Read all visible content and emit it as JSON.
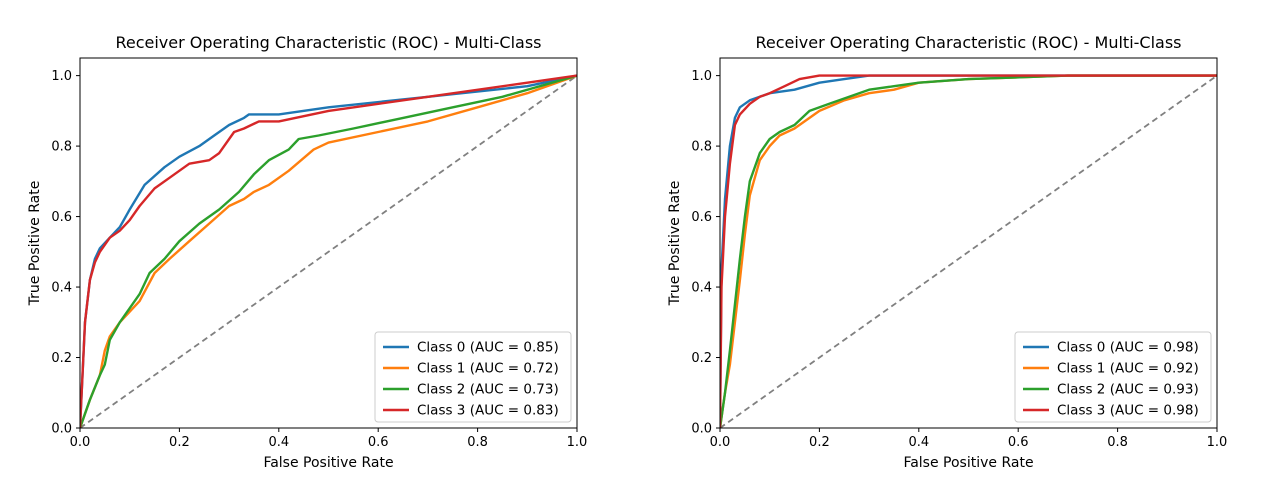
{
  "chart_data": [
    {
      "type": "line",
      "title": "Receiver Operating Characteristic (ROC) - Multi-Class",
      "xlabel": "False Positive Rate",
      "ylabel": "True Positive Rate",
      "xlim": [
        0,
        1
      ],
      "ylim": [
        0,
        1.05
      ],
      "xticks": [
        "0.0",
        "0.2",
        "0.4",
        "0.6",
        "0.8",
        "1.0"
      ],
      "yticks": [
        "0.0",
        "0.2",
        "0.4",
        "0.6",
        "0.8",
        "1.0"
      ],
      "grid": false,
      "legend_position": "lower-right",
      "baseline": {
        "x": [
          0,
          1
        ],
        "y": [
          0,
          1
        ],
        "color": "#808080",
        "style": "dashed"
      },
      "series": [
        {
          "name": "Class 0 (AUC = 0.85)",
          "color": "#1f77b4",
          "x": [
            0,
            0.01,
            0.02,
            0.03,
            0.04,
            0.06,
            0.08,
            0.1,
            0.13,
            0.17,
            0.2,
            0.24,
            0.27,
            0.3,
            0.33,
            0.34,
            0.4,
            0.5,
            0.7,
            0.9,
            1.0
          ],
          "y": [
            0,
            0.3,
            0.42,
            0.48,
            0.51,
            0.54,
            0.57,
            0.62,
            0.69,
            0.74,
            0.77,
            0.8,
            0.83,
            0.86,
            0.88,
            0.89,
            0.89,
            0.91,
            0.94,
            0.97,
            1.0
          ]
        },
        {
          "name": "Class 1 (AUC = 0.72)",
          "color": "#ff7f0e",
          "x": [
            0,
            0.02,
            0.04,
            0.05,
            0.06,
            0.08,
            0.1,
            0.12,
            0.15,
            0.18,
            0.22,
            0.26,
            0.3,
            0.33,
            0.35,
            0.38,
            0.42,
            0.47,
            0.5,
            0.6,
            0.7,
            0.8,
            0.9,
            1.0
          ],
          "y": [
            0,
            0.08,
            0.15,
            0.22,
            0.26,
            0.3,
            0.33,
            0.36,
            0.44,
            0.48,
            0.53,
            0.58,
            0.63,
            0.65,
            0.67,
            0.69,
            0.73,
            0.79,
            0.81,
            0.84,
            0.87,
            0.91,
            0.95,
            1.0
          ]
        },
        {
          "name": "Class 2 (AUC = 0.73)",
          "color": "#2ca02c",
          "x": [
            0,
            0.02,
            0.04,
            0.05,
            0.06,
            0.08,
            0.1,
            0.12,
            0.14,
            0.17,
            0.2,
            0.24,
            0.28,
            0.32,
            0.35,
            0.38,
            0.42,
            0.44,
            0.48,
            0.55,
            0.65,
            0.75,
            0.85,
            1.0
          ],
          "y": [
            0,
            0.08,
            0.15,
            0.18,
            0.25,
            0.3,
            0.34,
            0.38,
            0.44,
            0.48,
            0.53,
            0.58,
            0.62,
            0.67,
            0.72,
            0.76,
            0.79,
            0.82,
            0.83,
            0.85,
            0.88,
            0.91,
            0.94,
            1.0
          ]
        },
        {
          "name": "Class 3 (AUC = 0.83)",
          "color": "#d62728",
          "x": [
            0,
            0.01,
            0.02,
            0.03,
            0.04,
            0.06,
            0.08,
            0.1,
            0.12,
            0.15,
            0.18,
            0.22,
            0.26,
            0.28,
            0.31,
            0.33,
            0.36,
            0.4,
            0.5,
            0.7,
            0.9,
            1.0
          ],
          "y": [
            0,
            0.3,
            0.42,
            0.47,
            0.5,
            0.54,
            0.56,
            0.59,
            0.63,
            0.68,
            0.71,
            0.75,
            0.76,
            0.78,
            0.84,
            0.85,
            0.87,
            0.87,
            0.9,
            0.94,
            0.98,
            1.0
          ]
        }
      ]
    },
    {
      "type": "line",
      "title": "Receiver Operating Characteristic (ROC) - Multi-Class",
      "xlabel": "False Positive Rate",
      "ylabel": "True Positive Rate",
      "xlim": [
        0,
        1
      ],
      "ylim": [
        0,
        1.05
      ],
      "xticks": [
        "0.0",
        "0.2",
        "0.4",
        "0.6",
        "0.8",
        "1.0"
      ],
      "yticks": [
        "0.0",
        "0.2",
        "0.4",
        "0.6",
        "0.8",
        "1.0"
      ],
      "grid": false,
      "legend_position": "lower-right",
      "baseline": {
        "x": [
          0,
          1
        ],
        "y": [
          0,
          1
        ],
        "color": "#808080",
        "style": "dashed"
      },
      "series": [
        {
          "name": "Class 0 (AUC = 0.98)",
          "color": "#1f77b4",
          "x": [
            0,
            0.003,
            0.01,
            0.02,
            0.03,
            0.04,
            0.06,
            0.08,
            0.1,
            0.15,
            0.2,
            0.25,
            0.3,
            0.4,
            1.0
          ],
          "y": [
            0,
            0.45,
            0.65,
            0.8,
            0.88,
            0.91,
            0.93,
            0.94,
            0.95,
            0.96,
            0.98,
            0.99,
            1.0,
            1.0,
            1.0
          ]
        },
        {
          "name": "Class 1 (AUC = 0.92)",
          "color": "#ff7f0e",
          "x": [
            0,
            0.01,
            0.02,
            0.03,
            0.04,
            0.05,
            0.06,
            0.08,
            0.1,
            0.12,
            0.15,
            0.2,
            0.25,
            0.3,
            0.35,
            0.4,
            0.5,
            0.7,
            1.0
          ],
          "y": [
            0,
            0.1,
            0.18,
            0.3,
            0.42,
            0.55,
            0.66,
            0.76,
            0.8,
            0.83,
            0.85,
            0.9,
            0.93,
            0.95,
            0.96,
            0.98,
            0.99,
            1.0,
            1.0
          ]
        },
        {
          "name": "Class 2 (AUC = 0.93)",
          "color": "#2ca02c",
          "x": [
            0,
            0.01,
            0.02,
            0.03,
            0.04,
            0.05,
            0.06,
            0.08,
            0.1,
            0.12,
            0.15,
            0.18,
            0.22,
            0.26,
            0.3,
            0.35,
            0.4,
            0.5,
            0.7,
            1.0
          ],
          "y": [
            0,
            0.1,
            0.22,
            0.35,
            0.48,
            0.6,
            0.7,
            0.78,
            0.82,
            0.84,
            0.86,
            0.9,
            0.92,
            0.94,
            0.96,
            0.97,
            0.98,
            0.99,
            1.0,
            1.0
          ]
        },
        {
          "name": "Class 3 (AUC = 0.98)",
          "color": "#d62728",
          "x": [
            0,
            0.003,
            0.01,
            0.02,
            0.03,
            0.04,
            0.06,
            0.08,
            0.1,
            0.13,
            0.16,
            0.2,
            0.25,
            0.3,
            1.0
          ],
          "y": [
            0,
            0.4,
            0.6,
            0.75,
            0.86,
            0.89,
            0.92,
            0.94,
            0.95,
            0.97,
            0.99,
            1.0,
            1.0,
            1.0,
            1.0
          ]
        }
      ]
    }
  ]
}
